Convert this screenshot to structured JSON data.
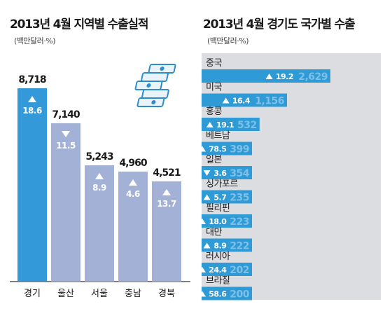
{
  "left": {
    "title": "2013년 4월 지역별 수출실적",
    "unit": "(백만달러·%)"
  },
  "right": {
    "title": "2013년 4월 경기도 국가별 수출",
    "unit": "(백만달러·%)"
  },
  "icon": "money-stack-icon",
  "colors": {
    "accent_bar": "#2e9ad6",
    "region_first": "#3399d8",
    "region_other": "#a4b1d6",
    "panel_bg": "#dcdde0",
    "country_value": "#7fc0e8",
    "arrow": "#ffffff"
  },
  "chart_data": [
    {
      "type": "bar",
      "categories": [
        "경기",
        "울산",
        "서울",
        "충남",
        "경북"
      ],
      "values": [
        8718,
        7140,
        5243,
        4960,
        4521
      ],
      "value_labels": [
        "8,718",
        "7,140",
        "5,243",
        "4,960",
        "4,521"
      ],
      "growth": [
        {
          "dir": "up",
          "text": "18.6"
        },
        {
          "dir": "down",
          "text": "11.5"
        },
        {
          "dir": "up",
          "text": "8.9"
        },
        {
          "dir": "up",
          "text": "4.6"
        },
        {
          "dir": "up",
          "text": "13.7"
        }
      ]
    },
    {
      "type": "bar",
      "orientation": "horizontal",
      "categories": [
        "중국",
        "미국",
        "홍콩",
        "베트남",
        "일본",
        "싱가포르",
        "필리핀",
        "대만",
        "러시아",
        "브라질"
      ],
      "values": [
        2629,
        1156,
        532,
        399,
        354,
        235,
        223,
        222,
        202,
        200
      ],
      "value_labels": [
        "2,629",
        "1,156",
        "532",
        "399",
        "354",
        "235",
        "223",
        "222",
        "202",
        "200"
      ],
      "growth": [
        {
          "dir": "up",
          "text": "19.2"
        },
        {
          "dir": "up",
          "text": "16.4"
        },
        {
          "dir": "up",
          "text": "19.1"
        },
        {
          "dir": "up",
          "text": "78.5"
        },
        {
          "dir": "down",
          "text": "3.6"
        },
        {
          "dir": "up",
          "text": "5.7"
        },
        {
          "dir": "up",
          "text": "18.0"
        },
        {
          "dir": "up",
          "text": "8.9"
        },
        {
          "dir": "up",
          "text": "24.4"
        },
        {
          "dir": "up",
          "text": "58.6"
        }
      ]
    }
  ]
}
